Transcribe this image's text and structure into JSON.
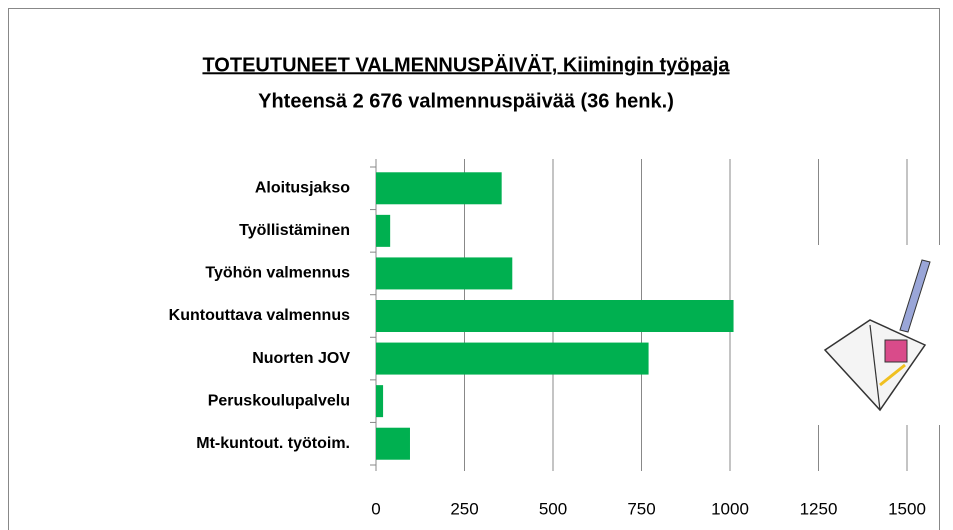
{
  "chart_data": {
    "type": "bar",
    "orientation": "horizontal",
    "title": "TOTEUTUNEET VALMENNUSPÄIVÄT, Kiimingin työpaja",
    "subtitle": "Yhteensä 2 676  valmennuspäivää (36 henk.)",
    "categories": [
      "Aloitusjakso",
      "Työllistäminen",
      "Työhön valmennus",
      "Kuntouttava valmennus",
      "Nuorten JOV",
      "Peruskoulupalvelu",
      "Mt-kuntout. työtoim."
    ],
    "values": [
      355,
      40,
      385,
      1010,
      770,
      20,
      96
    ],
    "color": "#00b050",
    "xlim": [
      0,
      1500
    ],
    "xticks": [
      0,
      250,
      500,
      750,
      1000,
      1250,
      1500
    ],
    "grid": true
  }
}
